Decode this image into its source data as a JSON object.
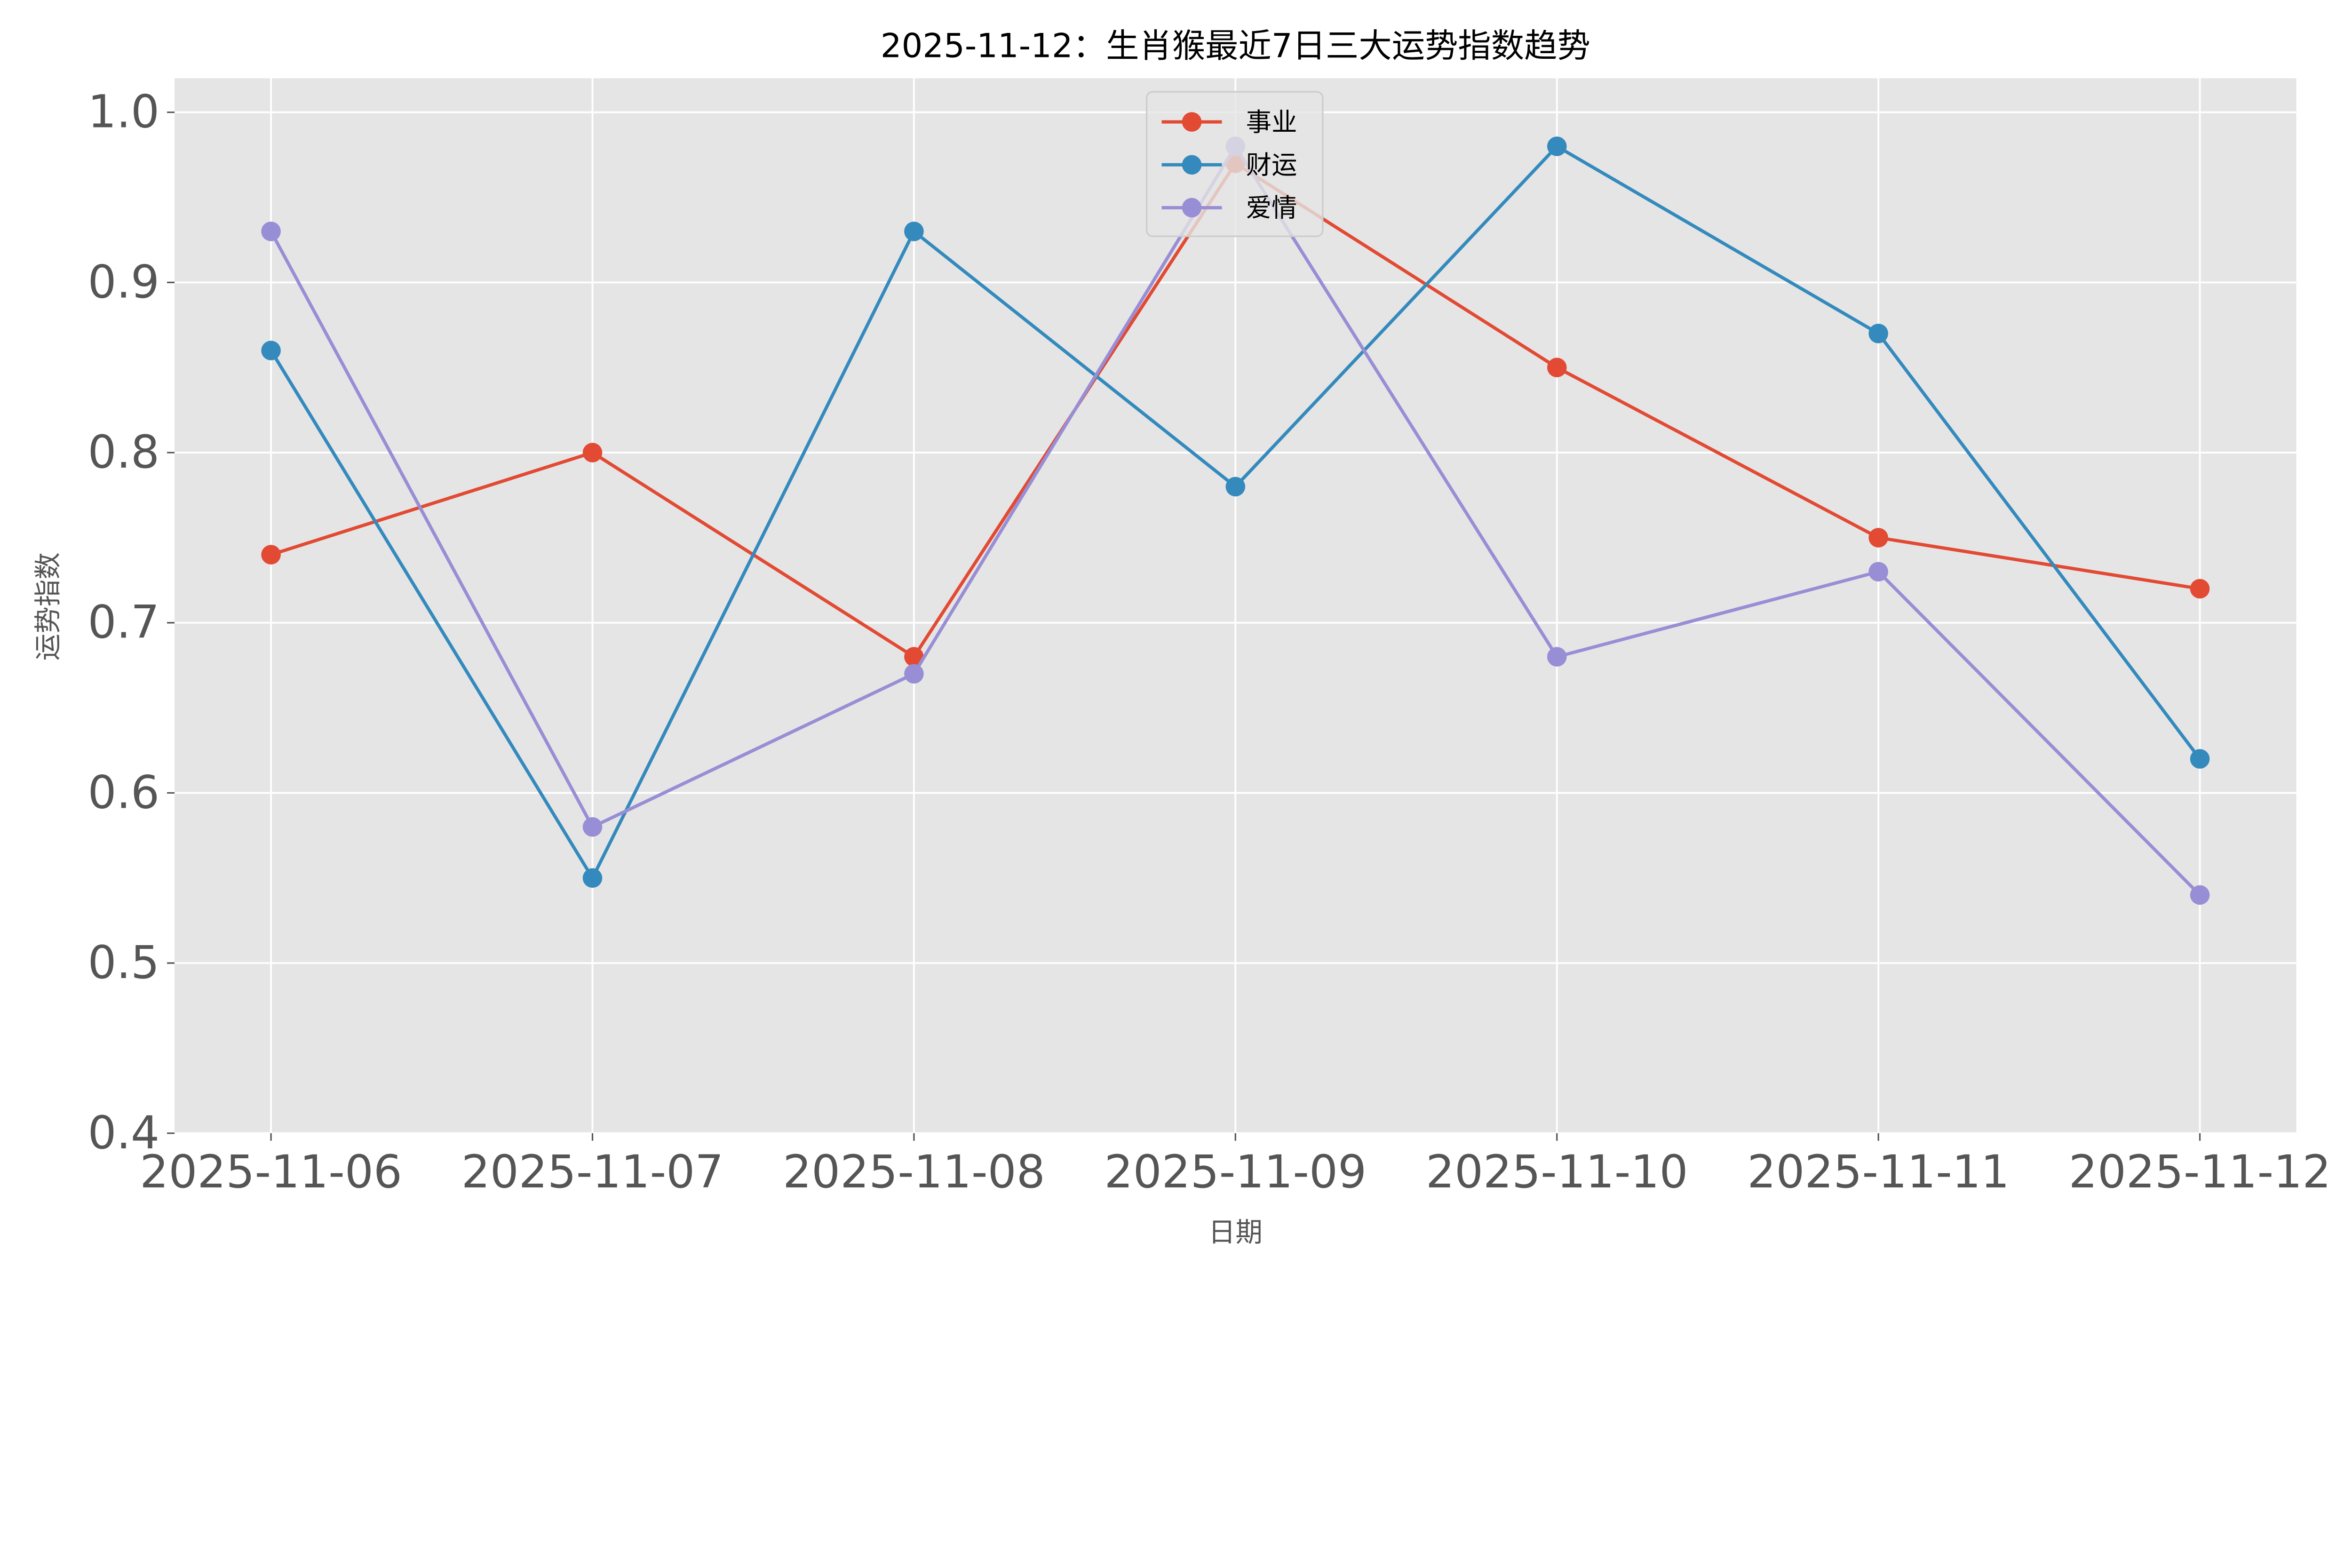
{
  "chart_data": {
    "type": "line",
    "title": "2025-11-12：生肖猴最近7日三大运势指数趋势",
    "xlabel": "日期",
    "ylabel": "运势指数",
    "categories": [
      "2025-11-06",
      "2025-11-07",
      "2025-11-08",
      "2025-11-09",
      "2025-11-10",
      "2025-11-11",
      "2025-11-12"
    ],
    "ylim": [
      0.4,
      1.02
    ],
    "yticks": [
      "0.4",
      "0.5",
      "0.6",
      "0.7",
      "0.8",
      "0.9",
      "1.0"
    ],
    "grid": true,
    "legend_position": "top-center",
    "series": [
      {
        "name": "事业",
        "color": "#E24A33",
        "values": [
          0.74,
          0.8,
          0.68,
          0.97,
          0.85,
          0.75,
          0.72
        ]
      },
      {
        "name": "财运",
        "color": "#348ABD",
        "values": [
          0.86,
          0.55,
          0.93,
          0.78,
          0.98,
          0.87,
          0.62
        ]
      },
      {
        "name": "爱情",
        "color": "#988ED5",
        "values": [
          0.93,
          0.58,
          0.67,
          0.98,
          0.68,
          0.73,
          0.54
        ]
      }
    ]
  }
}
